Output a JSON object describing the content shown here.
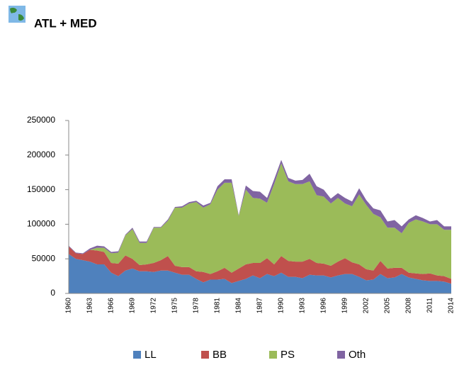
{
  "header": {
    "title": "ATL + MED"
  },
  "chart_data": {
    "type": "stacked_area",
    "categories": [
      "1960",
      null,
      null,
      "1963",
      null,
      null,
      "1966",
      null,
      null,
      "1969",
      null,
      null,
      "1972",
      null,
      null,
      "1975",
      null,
      null,
      "1978",
      null,
      null,
      "1981",
      null,
      null,
      "1984",
      null,
      null,
      "1987",
      null,
      null,
      "1990",
      null,
      null,
      "1993",
      null,
      null,
      "1996",
      null,
      null,
      "1999",
      null,
      null,
      "2002",
      null,
      null,
      "2005",
      null,
      null,
      "2008",
      null,
      null,
      "2011",
      null,
      null,
      "2014"
    ],
    "series": [
      {
        "name": "LL",
        "color": "#4f81bd",
        "values": [
          57000,
          50000,
          48000,
          46000,
          42000,
          42000,
          30000,
          25000,
          33000,
          36000,
          32000,
          32000,
          31000,
          33000,
          33000,
          30000,
          27000,
          27000,
          21000,
          16000,
          20000,
          20000,
          21000,
          15000,
          18000,
          21000,
          26000,
          22000,
          28000,
          25000,
          30000,
          24000,
          24000,
          22000,
          27000,
          26000,
          26000,
          23000,
          26000,
          28000,
          28000,
          24000,
          19000,
          20000,
          28000,
          22000,
          23000,
          28000,
          23000,
          21000,
          19000,
          18000,
          18000,
          17000,
          14000
        ]
      },
      {
        "name": "BB",
        "color": "#c0504d",
        "values": [
          11000,
          8000,
          9000,
          17000,
          20000,
          18000,
          14000,
          18000,
          22000,
          14000,
          9000,
          10000,
          13000,
          15000,
          21000,
          10000,
          11000,
          11000,
          11000,
          15000,
          8000,
          12000,
          16000,
          15000,
          18000,
          21000,
          18000,
          22000,
          23000,
          17000,
          24000,
          23000,
          22000,
          24000,
          23000,
          18000,
          17000,
          17000,
          20000,
          23000,
          17000,
          18000,
          16000,
          13000,
          19000,
          14000,
          14000,
          9000,
          7000,
          8000,
          9000,
          11000,
          8000,
          8000,
          7000
        ]
      },
      {
        "name": "PS",
        "color": "#9bbb59",
        "values": [
          0,
          0,
          0,
          0,
          4000,
          6000,
          14000,
          16000,
          29000,
          43000,
          32000,
          31000,
          51000,
          47000,
          51000,
          84000,
          86000,
          92000,
          100000,
          93000,
          101000,
          118000,
          123000,
          130000,
          76000,
          108000,
          94000,
          93000,
          80000,
          116000,
          134000,
          115000,
          112000,
          112000,
          112000,
          98000,
          97000,
          90000,
          92000,
          79000,
          81000,
          101000,
          93000,
          82000,
          63000,
          59000,
          58000,
          50000,
          72000,
          78000,
          76000,
          71000,
          74000,
          67000,
          71000
        ]
      },
      {
        "name": "Oth",
        "color": "#8064a2",
        "values": [
          1000,
          1000,
          1000,
          2000,
          3000,
          2000,
          2000,
          2000,
          1000,
          2000,
          2000,
          2000,
          1000,
          1000,
          2000,
          1000,
          2000,
          2000,
          2000,
          3000,
          2000,
          5000,
          5000,
          5000,
          1000,
          6000,
          10000,
          10000,
          7000,
          7000,
          5000,
          5000,
          5000,
          6000,
          11000,
          13000,
          10000,
          7000,
          7000,
          8000,
          7000,
          9000,
          7000,
          8000,
          10000,
          9000,
          11000,
          10000,
          5000,
          6000,
          5000,
          4000,
          6000,
          5000,
          5000
        ]
      }
    ],
    "ylim": [
      0,
      250000
    ],
    "yticks": [
      0,
      50000,
      100000,
      150000,
      200000,
      250000
    ],
    "grid": false,
    "legend": "bottom"
  }
}
